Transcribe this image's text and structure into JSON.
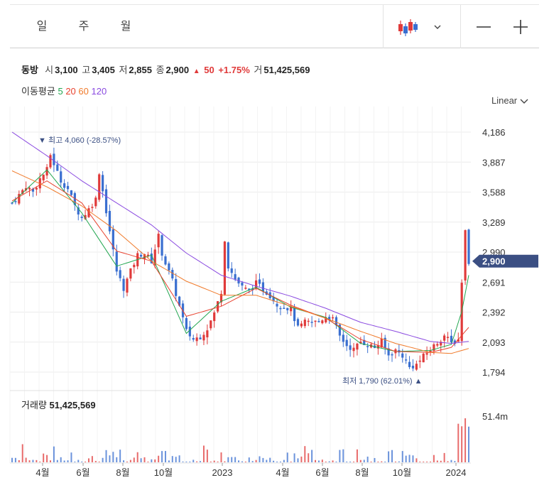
{
  "period_tabs": [
    {
      "label": "일",
      "active": true
    },
    {
      "label": "주",
      "active": false
    },
    {
      "label": "월",
      "active": false
    }
  ],
  "chart_type_icon": "candlestick-icon",
  "zoom": {
    "minus": "—",
    "plus": "+"
  },
  "quote": {
    "name": "동방",
    "open_label": "시",
    "open": "3,100",
    "high_label": "고",
    "high": "3,405",
    "low_label": "저",
    "low": "2,855",
    "close_label": "종",
    "close": "2,900",
    "change_arrow": "▲",
    "change": "50",
    "change_pct": "+1.75%",
    "volume_label": "거",
    "volume": "51,425,569"
  },
  "ma_legend": {
    "label": "이동평균",
    "periods": [
      {
        "label": "5",
        "color": "#22a650"
      },
      {
        "label": "20",
        "color": "#e8422f"
      },
      {
        "label": "60",
        "color": "#f07a2a"
      },
      {
        "label": "120",
        "color": "#8a4ae0"
      }
    ]
  },
  "scale": {
    "label": "Linear"
  },
  "colors": {
    "up": "#e03a3a",
    "down": "#3a6fd0",
    "accent": "#3b4f83"
  },
  "chart_data": {
    "type": "candlestick",
    "y_ticks": [
      "4,186",
      "3,887",
      "3,588",
      "3,289",
      "2,990",
      "2,691",
      "2,392",
      "2,093",
      "1,794"
    ],
    "y_range": [
      1794,
      4186
    ],
    "x_ticks": [
      "4월",
      "6월",
      "8월",
      "10월",
      "2023",
      "4월",
      "6월",
      "8월",
      "10월",
      "2024"
    ],
    "current_price_label": "2,900",
    "current_price": 2900,
    "max_annotation": {
      "arrow": "▼",
      "label": "최고",
      "value": "4,060 (-28.57%)"
    },
    "min_annotation": {
      "label": "최저",
      "value": "1,790 (62.01%)",
      "arrow": "▲"
    },
    "close_path": [
      [
        0,
        3480
      ],
      [
        2,
        3560
      ],
      [
        4,
        3650
      ],
      [
        6,
        3590
      ],
      [
        8,
        3720
      ],
      [
        10,
        3810
      ],
      [
        11,
        3960
      ],
      [
        12,
        3870
      ],
      [
        14,
        3700
      ],
      [
        16,
        3620
      ],
      [
        18,
        3450
      ],
      [
        20,
        3330
      ],
      [
        22,
        3420
      ],
      [
        24,
        3520
      ],
      [
        25,
        3790
      ],
      [
        26,
        3600
      ],
      [
        28,
        3200
      ],
      [
        30,
        2800
      ],
      [
        32,
        2630
      ],
      [
        34,
        2800
      ],
      [
        36,
        2960
      ],
      [
        38,
        2980
      ],
      [
        40,
        2900
      ],
      [
        42,
        3150
      ],
      [
        43,
        2980
      ],
      [
        44,
        2880
      ],
      [
        46,
        2700
      ],
      [
        48,
        2450
      ],
      [
        50,
        2200
      ],
      [
        52,
        2120
      ],
      [
        54,
        2150
      ],
      [
        56,
        2230
      ],
      [
        58,
        2380
      ],
      [
        60,
        2600
      ],
      [
        61,
        3120
      ],
      [
        62,
        2850
      ],
      [
        64,
        2720
      ],
      [
        66,
        2640
      ],
      [
        68,
        2600
      ],
      [
        70,
        2680
      ],
      [
        72,
        2620
      ],
      [
        74,
        2560
      ],
      [
        76,
        2470
      ],
      [
        78,
        2450
      ],
      [
        80,
        2420
      ],
      [
        82,
        2230
      ],
      [
        84,
        2290
      ],
      [
        86,
        2290
      ],
      [
        88,
        2300
      ],
      [
        90,
        2350
      ],
      [
        92,
        2320
      ],
      [
        94,
        2150
      ],
      [
        96,
        2060
      ],
      [
        98,
        2020
      ],
      [
        100,
        2100
      ],
      [
        102,
        2070
      ],
      [
        104,
        2040
      ],
      [
        106,
        2100
      ],
      [
        108,
        1960
      ],
      [
        110,
        2010
      ],
      [
        112,
        1960
      ],
      [
        114,
        1840
      ],
      [
        116,
        1870
      ],
      [
        118,
        1950
      ],
      [
        120,
        2020
      ],
      [
        122,
        2090
      ],
      [
        124,
        2160
      ],
      [
        126,
        2080
      ],
      [
        128,
        2120
      ],
      [
        129,
        2700
      ],
      [
        130,
        3200
      ],
      [
        131,
        2900
      ]
    ],
    "ma_lines": [
      {
        "period": "5",
        "color": "#22a650",
        "points": [
          [
            0,
            3480
          ],
          [
            10,
            3810
          ],
          [
            20,
            3380
          ],
          [
            30,
            2850
          ],
          [
            40,
            2960
          ],
          [
            50,
            2180
          ],
          [
            60,
            2500
          ],
          [
            70,
            2640
          ],
          [
            80,
            2440
          ],
          [
            90,
            2340
          ],
          [
            100,
            2080
          ],
          [
            110,
            2000
          ],
          [
            120,
            2010
          ],
          [
            126,
            2070
          ],
          [
            129,
            2400
          ],
          [
            131,
            2760
          ]
        ]
      },
      {
        "period": "20",
        "color": "#e8422f",
        "points": [
          [
            0,
            3500
          ],
          [
            10,
            3700
          ],
          [
            20,
            3480
          ],
          [
            30,
            3000
          ],
          [
            40,
            2900
          ],
          [
            50,
            2350
          ],
          [
            60,
            2450
          ],
          [
            70,
            2630
          ],
          [
            80,
            2460
          ],
          [
            90,
            2330
          ],
          [
            100,
            2120
          ],
          [
            110,
            2000
          ],
          [
            120,
            1990
          ],
          [
            126,
            2040
          ],
          [
            131,
            2240
          ]
        ]
      },
      {
        "period": "60",
        "color": "#f07a2a",
        "points": [
          [
            0,
            3800
          ],
          [
            10,
            3640
          ],
          [
            20,
            3450
          ],
          [
            30,
            3200
          ],
          [
            40,
            2900
          ],
          [
            50,
            2700
          ],
          [
            60,
            2560
          ],
          [
            70,
            2560
          ],
          [
            80,
            2450
          ],
          [
            90,
            2330
          ],
          [
            100,
            2200
          ],
          [
            110,
            2080
          ],
          [
            120,
            1990
          ],
          [
            126,
            1980
          ],
          [
            131,
            2030
          ]
        ]
      },
      {
        "period": "120",
        "color": "#8a4ae0",
        "points": [
          [
            0,
            4186
          ],
          [
            10,
            3950
          ],
          [
            20,
            3700
          ],
          [
            30,
            3480
          ],
          [
            40,
            3260
          ],
          [
            50,
            2980
          ],
          [
            60,
            2760
          ],
          [
            70,
            2650
          ],
          [
            80,
            2550
          ],
          [
            90,
            2430
          ],
          [
            100,
            2290
          ],
          [
            110,
            2200
          ],
          [
            120,
            2100
          ],
          [
            126,
            2080
          ],
          [
            131,
            2100
          ]
        ]
      }
    ],
    "volume_max_label": "51.4m",
    "volume_label": "거래량",
    "volume_value": "51,425,569"
  }
}
